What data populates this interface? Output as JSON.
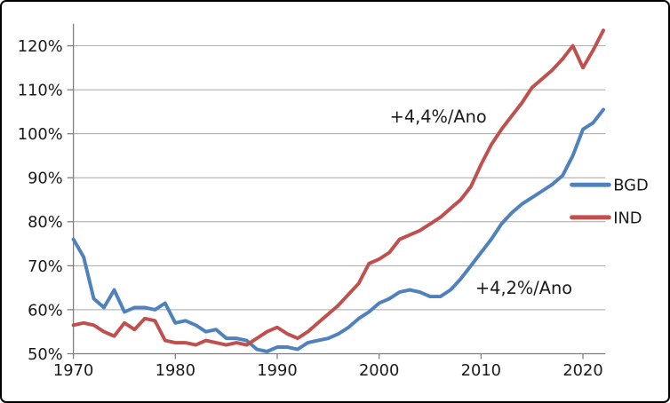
{
  "chart_data": {
    "type": "line",
    "title": "",
    "xlabel": "",
    "ylabel": "",
    "x": [
      1970,
      1971,
      1972,
      1973,
      1974,
      1975,
      1976,
      1977,
      1978,
      1979,
      1980,
      1981,
      1982,
      1983,
      1984,
      1985,
      1986,
      1987,
      1988,
      1989,
      1990,
      1991,
      1992,
      1993,
      1994,
      1995,
      1996,
      1997,
      1998,
      1999,
      2000,
      2001,
      2002,
      2003,
      2004,
      2005,
      2006,
      2007,
      2008,
      2009,
      2010,
      2011,
      2012,
      2013,
      2014,
      2015,
      2016,
      2017,
      2018,
      2019,
      2020,
      2021,
      2022
    ],
    "series": [
      {
        "name": "BGD",
        "color": "#4F81BD",
        "values": [
          76,
          72,
          62.5,
          60.5,
          64.5,
          59.5,
          60.5,
          60.5,
          60,
          61.5,
          57,
          57.5,
          56.5,
          55,
          55.5,
          53.5,
          53.5,
          53,
          51,
          50.5,
          51.5,
          51.5,
          51,
          52.5,
          53,
          53.5,
          54.5,
          56,
          58,
          59.5,
          61.5,
          62.5,
          64,
          64.5,
          64,
          63,
          63,
          64.5,
          67,
          70,
          73,
          76,
          79.5,
          82,
          84,
          85.5,
          87,
          88.5,
          90.5,
          95,
          101,
          102.5,
          105.5
        ]
      },
      {
        "name": "IND",
        "color": "#C0504D",
        "values": [
          56.5,
          57,
          56.5,
          55,
          54,
          57,
          55.5,
          58,
          57.5,
          53,
          52.5,
          52.5,
          52,
          53,
          52.5,
          52,
          52.5,
          52,
          53.5,
          55,
          56,
          54.5,
          53.5,
          55,
          57,
          59,
          61,
          63.5,
          66,
          70.5,
          71.5,
          73,
          76,
          77,
          78,
          79.5,
          81,
          83,
          85,
          88,
          93,
          97.5,
          101,
          104,
          107,
          110.5,
          112.5,
          114.5,
          117,
          120,
          115,
          119,
          123.5
        ]
      }
    ],
    "xlim": [
      1970,
      2022.2
    ],
    "ylim": [
      50,
      125
    ],
    "xticks": [
      1970,
      1980,
      1990,
      2000,
      2010,
      2020
    ],
    "xtick_labels": [
      "1970",
      "1980",
      "1990",
      "2000",
      "2010",
      "2020"
    ],
    "yticks": [
      50,
      60,
      70,
      80,
      90,
      100,
      110,
      120
    ],
    "ytick_labels": [
      "50%",
      "60%",
      "70%",
      "80%",
      "90%",
      "100%",
      "110%",
      "120%"
    ],
    "grid": "horizontal",
    "legend_position": "right-inside",
    "legend": [
      {
        "label": "BGD"
      },
      {
        "label": "IND"
      }
    ],
    "annotations": [
      {
        "text": "+4,4%/Ano",
        "x": 2005.8,
        "y": 104
      },
      {
        "text": "+4,2%/Ano",
        "x": 2014.2,
        "y": 65
      }
    ]
  },
  "styles": {
    "background": "#FFFFFF",
    "frame_border": "#000000",
    "gridline_color": "#A6A6A6",
    "axis_color": "#7F7F7F",
    "text_color": "#1A1A1A"
  }
}
